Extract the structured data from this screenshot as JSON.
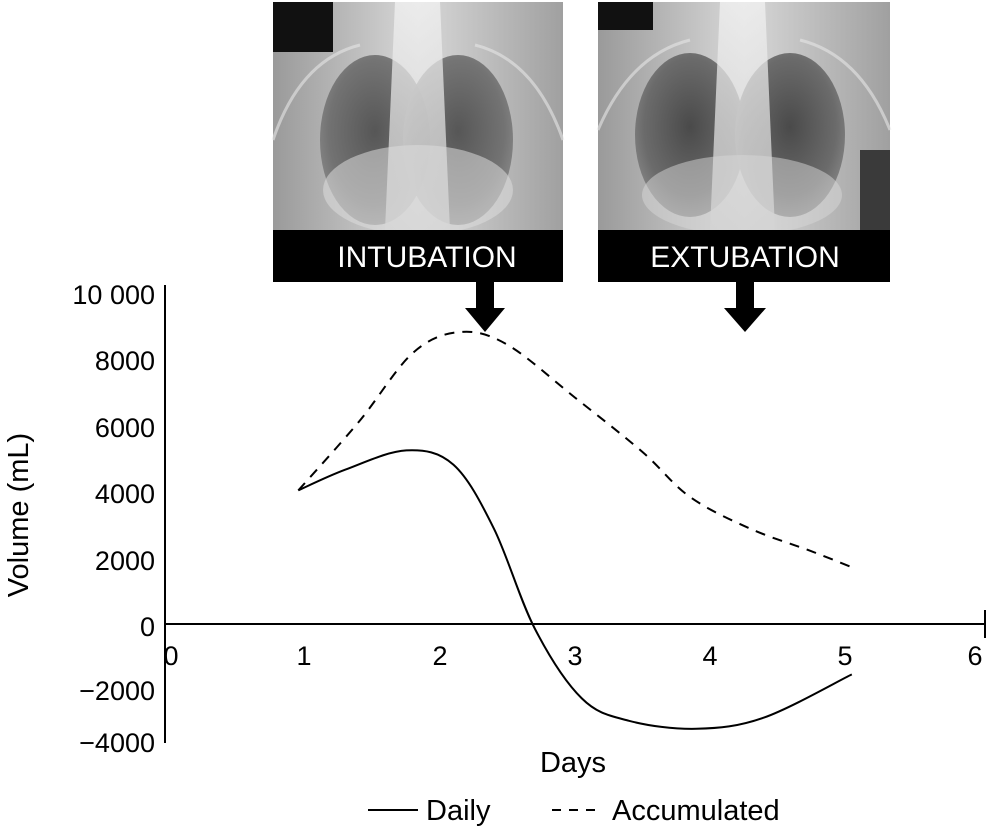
{
  "chart_data": {
    "type": "line",
    "title": "",
    "xlabel": "Days",
    "ylabel": "Volume (mL)",
    "xlim": [
      0,
      6
    ],
    "ylim": [
      -4000,
      10000
    ],
    "x_ticks": [
      "0",
      "1",
      "2",
      "3",
      "4",
      "5",
      "6"
    ],
    "y_ticks": [
      "10 000",
      "8000",
      "6000",
      "4000",
      "2000",
      "0",
      "−2000",
      "−4000"
    ],
    "grid": false,
    "legend_position": "bottom",
    "series": [
      {
        "name": "Daily",
        "style": "solid",
        "color": "#000000",
        "points": [
          [
            0.95,
            3800
          ],
          [
            1.3,
            4450
          ],
          [
            1.75,
            5050
          ],
          [
            2.1,
            4600
          ],
          [
            2.4,
            2600
          ],
          [
            2.7,
            -500
          ],
          [
            3.05,
            -2700
          ],
          [
            3.4,
            -3400
          ],
          [
            3.9,
            -3650
          ],
          [
            4.4,
            -3300
          ],
          [
            5.05,
            -1950
          ]
        ]
      },
      {
        "name": "Accumulated",
        "style": "dashed",
        "color": "#000000",
        "points": [
          [
            0.95,
            3800
          ],
          [
            1.4,
            5950
          ],
          [
            1.8,
            8100
          ],
          [
            2.15,
            8750
          ],
          [
            2.5,
            8350
          ],
          [
            3.0,
            6700
          ],
          [
            3.5,
            5000
          ],
          [
            3.85,
            3600
          ],
          [
            4.3,
            2600
          ],
          [
            4.75,
            1900
          ],
          [
            5.05,
            1400
          ]
        ]
      }
    ],
    "annotations": [
      {
        "label": "INTUBATION",
        "marker": "arrow-down",
        "at_x": 2.3,
        "image": "chest-radiograph"
      },
      {
        "label": "EXTUBATION",
        "marker": "arrow-down",
        "at_x": 4.25,
        "image": "chest-radiograph"
      }
    ]
  }
}
